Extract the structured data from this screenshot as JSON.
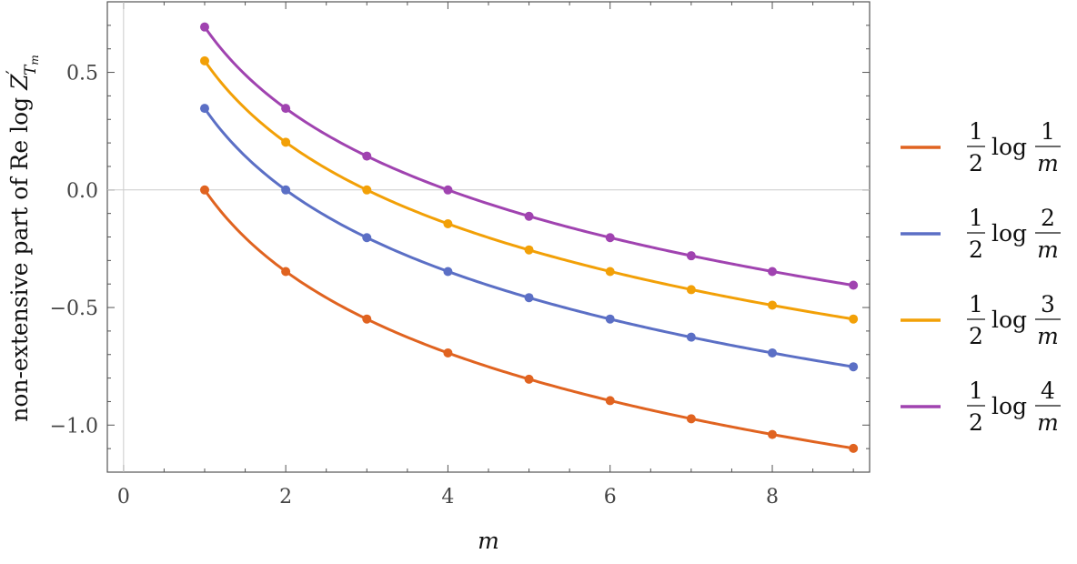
{
  "chart_data": {
    "type": "line",
    "xlabel": "m",
    "ylabel": {
      "prefix": "non-extensive part of ",
      "re": "Re",
      "log": " log ",
      "z": "Z",
      "prime": "′",
      "sub_t": "T",
      "sub_m": "m"
    },
    "xlim": [
      -0.2,
      9.2
    ],
    "ylim": [
      -1.2,
      0.8
    ],
    "xticks": [
      0,
      2,
      4,
      6,
      8
    ],
    "xtick_labels": [
      "0",
      "2",
      "4",
      "6",
      "8"
    ],
    "yticks": [
      -1.0,
      -0.5,
      0.0,
      0.5
    ],
    "ytick_labels": [
      "−1.0",
      "−0.5",
      "0.0",
      "0.5"
    ],
    "grid": false,
    "zero_line": true,
    "legend_position": "right",
    "x": [
      1,
      2,
      3,
      4,
      5,
      6,
      7,
      8,
      9
    ],
    "series": [
      {
        "label": {
          "num": "1",
          "den": "2",
          "log": "log",
          "frac_num": "1",
          "frac_den": "m"
        },
        "k": 1,
        "color": "#e06320",
        "values": [
          0.0,
          -0.347,
          -0.549,
          -0.693,
          -0.805,
          -0.896,
          -0.973,
          -1.04,
          -1.099
        ]
      },
      {
        "label": {
          "num": "1",
          "den": "2",
          "log": "log",
          "frac_num": "2",
          "frac_den": "m"
        },
        "k": 2,
        "color": "#5b6fc5",
        "values": [
          0.347,
          0.0,
          -0.203,
          -0.347,
          -0.458,
          -0.549,
          -0.626,
          -0.693,
          -0.752
        ]
      },
      {
        "label": {
          "num": "1",
          "den": "2",
          "log": "log",
          "frac_num": "3",
          "frac_den": "m"
        },
        "k": 3,
        "color": "#f2a007",
        "values": [
          0.549,
          0.203,
          0.0,
          -0.144,
          -0.255,
          -0.347,
          -0.424,
          -0.49,
          -0.549
        ]
      },
      {
        "label": {
          "num": "1",
          "den": "2",
          "log": "log",
          "frac_num": "4",
          "frac_den": "m"
        },
        "k": 4,
        "color": "#a043b0",
        "values": [
          0.693,
          0.347,
          0.144,
          0.0,
          -0.112,
          -0.203,
          -0.28,
          -0.347,
          -0.405
        ]
      }
    ]
  }
}
